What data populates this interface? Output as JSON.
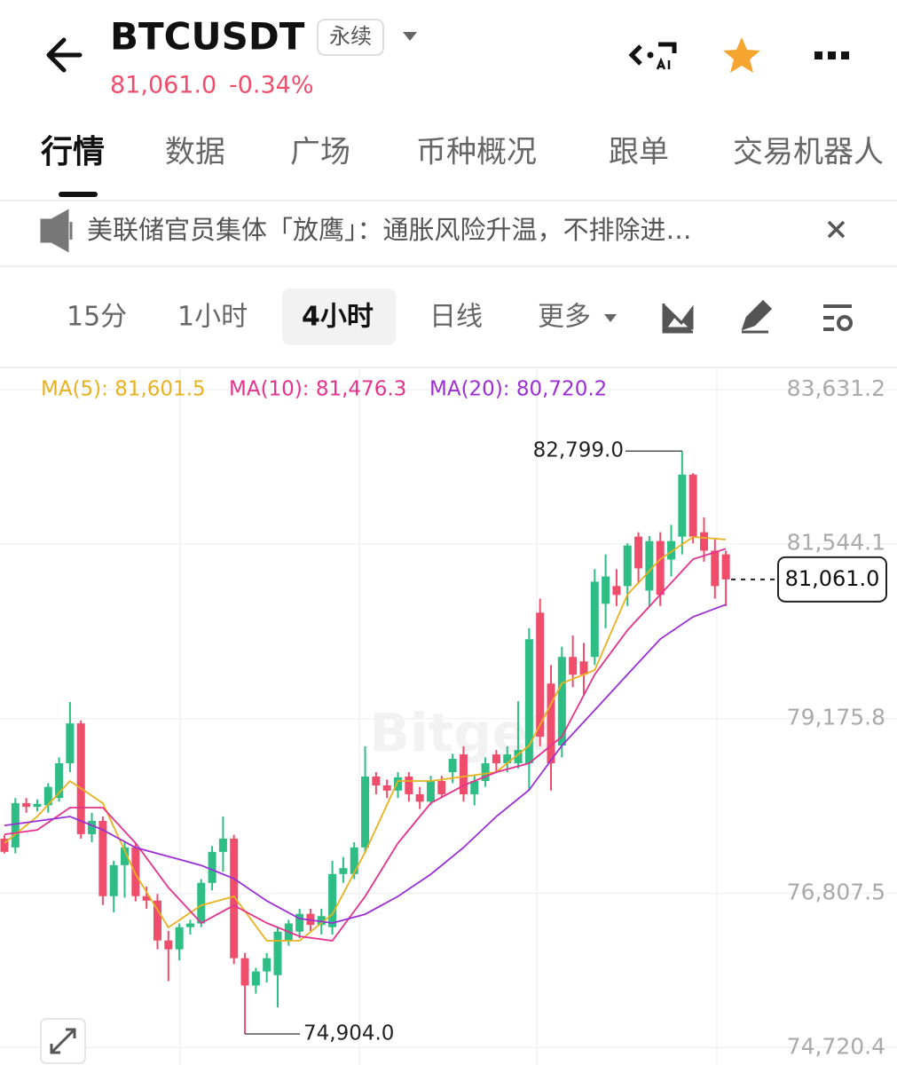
{
  "header": {
    "symbol": "BTCUSDT",
    "badge": "永续",
    "price": "81,061.0",
    "change": "-0.34%"
  },
  "tabs": [
    "行情",
    "数据",
    "广场",
    "币种概况",
    "跟单",
    "交易机器人"
  ],
  "news": "美联储官员集体「放鹰」：通胀风险升温，不排除进…",
  "intervals": [
    "15分",
    "1小时",
    "4小时",
    "日线",
    "更多"
  ],
  "chart_data": {
    "type": "candlestick",
    "watermark": "Bitget",
    "up_color": "#2ebd85",
    "down_color": "#ef4d6b",
    "grid": true,
    "ylim": [
      74483,
      83920
    ],
    "yticks": [
      {
        "value": 83631.2,
        "label": "83,631.2"
      },
      {
        "value": 81544.1,
        "label": "81,544.1"
      },
      {
        "value": 79175.8,
        "label": "79,175.8"
      },
      {
        "value": 76807.5,
        "label": "76,807.5"
      },
      {
        "value": 74720.4,
        "label": "74,720.4"
      }
    ],
    "open": [
      77550,
      77430,
      78030,
      77980,
      78000,
      78100,
      78570,
      79110,
      77610,
      77790,
      76770,
      77190,
      77430,
      76770,
      76710,
      76170,
      76050,
      76350,
      76400,
      76950,
      77370,
      77550,
      75930,
      75560,
      75750,
      75700,
      76170,
      76290,
      76530,
      76380,
      76350,
      77070,
      77070,
      77430,
      78390,
      78270,
      78200,
      78390,
      78150,
      78050,
      78330,
      78450,
      78690,
      78150,
      78330,
      78690,
      78570,
      78570,
      78570,
      80610,
      79650,
      78810,
      80010,
      79950,
      80010,
      80730,
      80970,
      80970,
      81640,
      80910,
      81580,
      81330,
      81640,
      82480,
      81700,
      81450,
      81400
    ],
    "high": [
      77600,
      78100,
      78100,
      78080,
      78300,
      78650,
      79400,
      79150,
      77900,
      77850,
      77250,
      77500,
      77480,
      76900,
      76800,
      76300,
      76400,
      76450,
      77000,
      77450,
      77850,
      77600,
      76000,
      75800,
      76000,
      76350,
      76450,
      76600,
      76600,
      76600,
      77250,
      77300,
      77500,
      78800,
      78450,
      78350,
      78450,
      78450,
      78250,
      78400,
      78400,
      78700,
      78800,
      78400,
      78650,
      78750,
      78800,
      79410,
      80400,
      80800,
      79900,
      80150,
      80300,
      80200,
      81200,
      81400,
      81200,
      81550,
      81700,
      81650,
      81700,
      81800,
      82799,
      82500,
      81900,
      81600,
      81450
    ],
    "low": [
      77350,
      77350,
      77900,
      77920,
      77900,
      78050,
      78450,
      77550,
      77500,
      76650,
      76550,
      76750,
      76700,
      76600,
      76050,
      75620,
      75900,
      76250,
      76350,
      76850,
      77100,
      75850,
      74904,
      75450,
      75600,
      75264,
      76100,
      76200,
      76300,
      76250,
      76250,
      76950,
      77000,
      77350,
      78150,
      78100,
      78100,
      78050,
      77950,
      78000,
      78100,
      78300,
      78050,
      78000,
      78250,
      78450,
      78450,
      78500,
      78200,
      78800,
      78200,
      78650,
      79600,
      79500,
      79900,
      80400,
      80700,
      80700,
      81000,
      80700,
      80700,
      81100,
      81400,
      81550,
      81300,
      80800,
      80700
    ],
    "close": [
      77370,
      78030,
      77980,
      78020,
      78250,
      78570,
      79110,
      77610,
      77790,
      76770,
      77190,
      77430,
      76770,
      76710,
      76170,
      76050,
      76350,
      76400,
      76950,
      77370,
      77550,
      75930,
      75560,
      75750,
      75930,
      76290,
      76400,
      76530,
      76380,
      76500,
      77070,
      77150,
      77430,
      78390,
      78270,
      78200,
      78380,
      78150,
      78050,
      78330,
      78150,
      78630,
      78150,
      78330,
      78570,
      78570,
      78690,
      78750,
      80250,
      78930,
      78570,
      80010,
      79770,
      79770,
      81030,
      81100,
      80850,
      81520,
      81210,
      81580,
      80850,
      81580,
      82480,
      81640,
      81450,
      80970,
      81061
    ],
    "ma": {
      "x": [
        0,
        3,
        6,
        9,
        12,
        15,
        18,
        21,
        24,
        27,
        30,
        33,
        36,
        39,
        42,
        45,
        48,
        51,
        54,
        57,
        60,
        63,
        66
      ],
      "series": [
        {
          "label": "MA(5): 81,601.5",
          "color": "#e8b120",
          "values": [
            77488,
            77849,
            78330,
            78029,
            77067,
            76346,
            76646,
            76767,
            76166,
            76166,
            76526,
            77368,
            78330,
            78330,
            78390,
            78450,
            78811,
            79652,
            79832,
            80854,
            81335,
            81636,
            81601.5
          ]
        },
        {
          "label": "MA(10): 81,476.3",
          "color": "#e3338f",
          "values": [
            77608,
            77668,
            77969,
            77969,
            77488,
            76887,
            76406,
            76646,
            76406,
            76226,
            76166,
            76767,
            77488,
            78029,
            78269,
            78450,
            78570,
            78931,
            79772,
            80373,
            80854,
            81335,
            81476.3
          ]
        },
        {
          "label": "MA(20): 80,720.2",
          "color": "#9b2fd6",
          "values": [
            77728,
            77788,
            77849,
            77668,
            77428,
            77308,
            77187,
            77007,
            76706,
            76466,
            76406,
            76526,
            76767,
            77067,
            77428,
            77849,
            78209,
            78811,
            79291,
            79772,
            80253,
            80554,
            80720.2
          ]
        }
      ]
    },
    "high_mark": {
      "value": 82799,
      "label": "82,799.0"
    },
    "low_mark": {
      "value": 74904,
      "label": "74,904.0"
    },
    "last_mark": {
      "value": 81061,
      "label": "81,061.0"
    }
  }
}
